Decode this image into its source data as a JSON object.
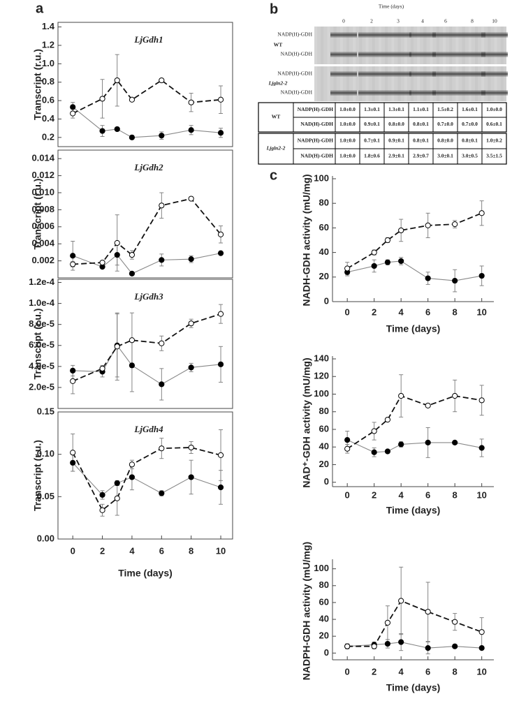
{
  "panel_labels": [
    "a",
    "b",
    "c"
  ],
  "gel": {
    "title": "Time (days)",
    "lanes": [
      "0",
      "2",
      "3",
      "4",
      "6",
      "8",
      "10"
    ],
    "strips": [
      {
        "genotype": "WT",
        "bands": [
          "NADP(H)-GDH",
          "NAD(H)-GDH"
        ]
      },
      {
        "genotype": "Ljgln2-2",
        "bands": [
          "NADP(H)-GDH",
          "NAD(H)-GDH"
        ]
      }
    ]
  },
  "table": {
    "rows": [
      {
        "genotype": "WT",
        "lines": [
          {
            "label": "NADP(H)-GDH",
            "values": [
              "1.0±0.0",
              "1.3±0.1",
              "1.3±0.1",
              "1.1±0.1",
              "1.5±0.2",
              "1.6±0.1",
              "1.0±0.0"
            ]
          },
          {
            "label": "NAD(H)-GDH",
            "values": [
              "1.0±0.0",
              "0.9±0.1",
              "0.8±0.0",
              "0.8±0.1",
              "0.7±0.0",
              "0.7±0.0",
              "0.6±0.1"
            ]
          }
        ]
      },
      {
        "genotype": "Ljgln2-2",
        "lines": [
          {
            "label": "NADP(H)-GDH",
            "values": [
              "1.0±0.0",
              "0.7±0.1",
              "0.9±0.1",
              "0.8±0.1",
              "0.8±0.0",
              "0.8±0.1",
              "1.0±0.2"
            ]
          },
          {
            "label": "NAD(H)-GDH",
            "values": [
              "1.0±0.0",
              "1.8±0.6",
              "2.9±0.1",
              "2.9±0.7",
              "3.0±0.1",
              "3.0±0.5",
              "3.5±1.5"
            ]
          }
        ]
      }
    ]
  },
  "chart_data": [
    {
      "type": "line",
      "title": "LjGdh1",
      "ylabel": "Transcript (r.u.)",
      "frame": "box",
      "x": [
        0,
        2,
        3,
        4,
        6,
        8,
        10
      ],
      "xlim": [
        -1,
        10.8
      ],
      "ylim": [
        0.1,
        1.45
      ],
      "yticks": [
        0.2,
        0.4,
        0.6,
        0.8,
        {
          "value": 1,
          "label": "1.0"
        },
        1.2,
        1.4
      ],
      "series": [
        {
          "marker": "filled",
          "line": "solid",
          "color": "#888888",
          "values": [
            0.53,
            0.27,
            0.29,
            0.2,
            0.22,
            0.28,
            0.25
          ],
          "errors": [
            0.05,
            0.06,
            0.02,
            0.02,
            0.04,
            0.05,
            0.05
          ]
        },
        {
          "marker": "open",
          "line": "dashed",
          "color": "#111111",
          "values": [
            0.46,
            0.62,
            0.82,
            0.61,
            0.82,
            0.58,
            0.61
          ],
          "errors": [
            0.05,
            0.21,
            0.28,
            0.01,
            0.01,
            0.1,
            0.15
          ]
        }
      ]
    },
    {
      "type": "line",
      "title": "LjGdh2",
      "ylabel": "Transcript (r.u.)",
      "frame": "box",
      "x": [
        0,
        2,
        3,
        4,
        6,
        8,
        10
      ],
      "xlim": [
        -1,
        10.8
      ],
      "ylim": [
        0,
        0.015
      ],
      "yticks": [
        0.002,
        0.004,
        0.006,
        0.008,
        {
          "value": 0.01,
          "label": "0.010"
        },
        0.012,
        0.014
      ],
      "series": [
        {
          "marker": "filled",
          "line": "solid",
          "color": "#888888",
          "values": [
            0.0026,
            0.0013,
            0.0027,
            0.0005,
            0.0021,
            0.0022,
            0.0029
          ],
          "errors": [
            0.0017,
            0.0001,
            0.0012,
            0,
            0.0007,
            0.0004,
            0.0001
          ]
        },
        {
          "marker": "open",
          "line": "dashed",
          "color": "#111111",
          "values": [
            0.0016,
            0.0018,
            0.0041,
            0.0027,
            0.0085,
            0.0093,
            0.0051
          ],
          "errors": [
            0.0003,
            0.0001,
            0.0033,
            0.0005,
            0.0015,
            0.0002,
            0.001
          ]
        }
      ]
    },
    {
      "type": "line",
      "title": "LjGdh3",
      "ylabel": "Transcript (r.u.)",
      "frame": "box",
      "x": [
        0,
        2,
        3,
        4,
        6,
        8,
        10
      ],
      "xlim": [
        -1,
        10.8
      ],
      "ylim": [
        0,
        0.000123
      ],
      "yticks": [
        {
          "value": 2e-05,
          "label": "2.0e-5"
        },
        {
          "value": 4e-05,
          "label": "4.0e-5"
        },
        {
          "value": 6e-05,
          "label": "6.0e-5"
        },
        {
          "value": 8e-05,
          "label": "8.0e-5"
        },
        {
          "value": 0.0001,
          "label": "1.0e-4"
        },
        {
          "value": 0.00012,
          "label": "1.2e-4"
        }
      ],
      "series": [
        {
          "marker": "filled",
          "line": "solid",
          "color": "#888888",
          "values": [
            3.6e-05,
            3.5e-05,
            6e-05,
            4.1e-05,
            2.3e-05,
            3.9e-05,
            4.2e-05
          ],
          "errors": [
            5e-06,
            5e-06,
            3e-05,
            2.5e-05,
            1.5e-05,
            4e-06,
            1.7e-05
          ]
        },
        {
          "marker": "open",
          "line": "dashed",
          "color": "#111111",
          "values": [
            2.6e-05,
            3.8e-05,
            5.9e-05,
            6.5e-05,
            6.2e-05,
            8.1e-05,
            9e-05
          ],
          "errors": [
            1.2e-05,
            3e-06,
            3.2e-05,
            2.6e-05,
            7e-06,
            4e-06,
            9e-06
          ]
        }
      ]
    },
    {
      "type": "line",
      "title": "LjGdh4",
      "ylabel": "Transcript (r.u.)",
      "xlabel": "Time (days)",
      "frame": "box",
      "x": [
        0,
        2,
        3,
        4,
        6,
        8,
        10
      ],
      "xlim": [
        -1,
        10.8
      ],
      "ylim": [
        0,
        0.15
      ],
      "xticks": [
        0,
        2,
        4,
        6,
        8,
        10
      ],
      "yticks": [
        {
          "value": 0,
          "label": "0.00"
        },
        0.05,
        {
          "value": 0.1,
          "label": "0.10"
        },
        0.15
      ],
      "series": [
        {
          "marker": "filled",
          "line": "solid",
          "color": "#888888",
          "values": [
            0.09,
            0.052,
            0.066,
            0.073,
            0.054,
            0.073,
            0.061
          ],
          "errors": [
            0.01,
            0.005,
            0.003,
            0.015,
            0.003,
            0.02,
            0.02
          ]
        },
        {
          "marker": "open",
          "line": "dashed",
          "color": "#111111",
          "values": [
            0.102,
            0.034,
            0.048,
            0.088,
            0.107,
            0.108,
            0.099
          ],
          "errors": [
            0.022,
            0.007,
            0.02,
            0.005,
            0.012,
            0.007,
            0.03
          ]
        }
      ]
    },
    {
      "type": "line",
      "ylabel": "NADH-GDH activity (mU/mg)",
      "xlabel": "Time (days)",
      "frame": "axes",
      "x": [
        0,
        2,
        3,
        4,
        6,
        8,
        10
      ],
      "xlim": [
        -1.1,
        10.9
      ],
      "ylim": [
        0,
        100
      ],
      "xticks": [
        0,
        2,
        4,
        6,
        8,
        10
      ],
      "yticks": [
        0,
        20,
        40,
        60,
        80,
        100
      ],
      "series": [
        {
          "marker": "filled",
          "line": "solid",
          "color": "#888888",
          "values": [
            24,
            29,
            32,
            33,
            19,
            17,
            21
          ],
          "errors": [
            3,
            5,
            2,
            3,
            5,
            9,
            8
          ]
        },
        {
          "marker": "open",
          "line": "dashed",
          "color": "#111111",
          "values": [
            27,
            40,
            50,
            58,
            62,
            63,
            72
          ],
          "errors": [
            5,
            2,
            2,
            9,
            10,
            3,
            10
          ]
        }
      ]
    },
    {
      "type": "line",
      "ylabel": "NAD⁺-GDH activity (mU/mg)",
      "xlabel": "Time (days)",
      "frame": "axes",
      "x": [
        0,
        2,
        3,
        4,
        6,
        8,
        10
      ],
      "xlim": [
        -1.1,
        10.9
      ],
      "ylim": [
        -5,
        140
      ],
      "xticks": [
        0,
        2,
        4,
        6,
        8,
        10
      ],
      "yticks": [
        0,
        20,
        40,
        60,
        80,
        100,
        120,
        140
      ],
      "series": [
        {
          "marker": "filled",
          "line": "solid",
          "color": "#888888",
          "values": [
            48,
            34,
            35,
            43,
            45,
            45,
            39
          ],
          "errors": [
            10,
            5,
            2,
            3,
            17,
            1,
            10
          ]
        },
        {
          "marker": "open",
          "line": "dashed",
          "color": "#111111",
          "values": [
            38,
            58,
            71,
            98,
            87,
            98,
            93
          ],
          "errors": [
            5,
            10,
            1,
            24,
            2,
            18,
            17
          ]
        }
      ]
    },
    {
      "type": "line",
      "ylabel": "NADPH-GDH activity (mU/mg)",
      "xlabel": "Time (days)",
      "frame": "axes",
      "x": [
        0,
        2,
        3,
        4,
        6,
        8,
        10
      ],
      "xlim": [
        -1.1,
        10.9
      ],
      "ylim": [
        -8,
        108
      ],
      "xticks": [
        0,
        2,
        4,
        6,
        8,
        10
      ],
      "yticks": [
        0,
        20,
        40,
        60,
        80,
        100
      ],
      "series": [
        {
          "marker": "filled",
          "line": "solid",
          "color": "#888888",
          "values": [
            8,
            10,
            11,
            13,
            6,
            8,
            6
          ],
          "errors": [
            3,
            3,
            5,
            10,
            7,
            1,
            2
          ]
        },
        {
          "marker": "open",
          "line": "dashed",
          "color": "#111111",
          "values": [
            8,
            8,
            36,
            62,
            49,
            37,
            25
          ],
          "errors": [
            2,
            3,
            20,
            40,
            35,
            10,
            17
          ]
        }
      ]
    }
  ]
}
